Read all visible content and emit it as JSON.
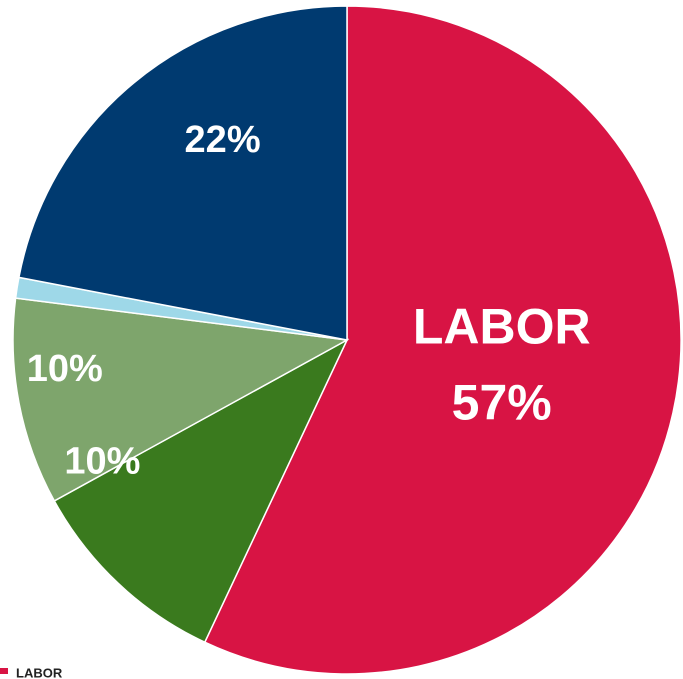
{
  "chart_data": {
    "type": "pie",
    "categories": [
      "LABOR",
      null,
      null,
      null,
      null
    ],
    "values": [
      57,
      10,
      10,
      1,
      22
    ],
    "value_labels": [
      "57%",
      "10%",
      "10%",
      null,
      "22%"
    ],
    "colors": [
      "#d81444",
      "#3a7a1e",
      "#7ea56c",
      "#9ed8e8",
      "#003a70"
    ],
    "legend": "bottom"
  }
}
